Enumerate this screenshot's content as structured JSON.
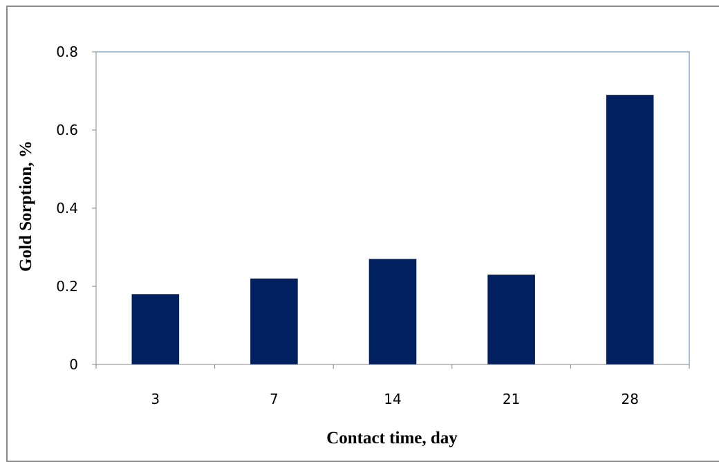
{
  "chart_data": {
    "type": "bar",
    "title": "",
    "xlabel": "Contact time, day",
    "ylabel": "Gold Sorption, %",
    "categories": [
      "3",
      "7",
      "14",
      "21",
      "28"
    ],
    "values": [
      0.18,
      0.22,
      0.27,
      0.23,
      0.69
    ],
    "ylim": [
      0,
      0.8
    ],
    "yticks": [
      "0",
      "0.2",
      "0.4",
      "0.6",
      "0.8"
    ],
    "yticks_values": [
      0,
      0.2,
      0.4,
      0.6,
      0.8
    ],
    "grid": false,
    "legend": "none",
    "bar_color": "#002060",
    "plot_border_color": "#4f81bd"
  }
}
